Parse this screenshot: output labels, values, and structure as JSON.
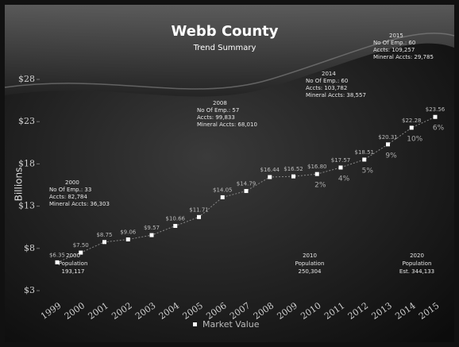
{
  "chart_data": {
    "type": "line",
    "title": "Webb County",
    "subtitle": "Trend Summary",
    "y_label": "Billions",
    "categories": [
      "1999",
      "2000",
      "2001",
      "2002",
      "2003",
      "2004",
      "2005",
      "2006",
      "2007",
      "2008",
      "2009",
      "2010",
      "2011",
      "2012",
      "2013",
      "2014",
      "2015"
    ],
    "series": [
      {
        "name": "Market Value",
        "color": "#ffffff",
        "values": [
          6.35,
          7.5,
          8.75,
          9.06,
          9.57,
          10.66,
          11.71,
          14.05,
          14.79,
          16.44,
          16.52,
          16.8,
          17.57,
          18.51,
          20.31,
          22.28,
          23.56
        ],
        "value_labels": [
          "$6.35",
          "$7.50",
          "$8.75",
          "$9.06",
          "$9.57",
          "$10.66",
          "$11.71",
          "$14.05",
          "$14.79",
          "$16.44",
          "$16.52",
          "$16.80",
          "$17.57",
          "$18.51",
          "$20.31",
          "$22.28",
          "$23.56"
        ]
      }
    ],
    "growth_labels": [
      null,
      null,
      null,
      null,
      null,
      null,
      null,
      null,
      null,
      null,
      null,
      "2%",
      "4%",
      "5%",
      "9%",
      "10%",
      "6%"
    ],
    "ylim": [
      3,
      28
    ],
    "yticks": [
      {
        "value": 3,
        "label": "$3"
      },
      {
        "value": 8,
        "label": "$8"
      },
      {
        "value": 13,
        "label": "$13"
      },
      {
        "value": 18,
        "label": "$18"
      },
      {
        "value": 23,
        "label": "$23"
      },
      {
        "value": 28,
        "label": "$28"
      }
    ],
    "annotations": [
      {
        "lines": [
          "2000",
          "No Of Emp.: 33",
          "Accts: 82,784",
          "Mineral Accts: 36,303"
        ]
      },
      {
        "lines": [
          "2008",
          "No Of Emp.: 57",
          "Accts: 99,833",
          "Mineral Accts: 68,010"
        ]
      },
      {
        "lines": [
          "2014",
          "No Of Emp.: 60",
          "Accts: 103,782",
          "Mineral Accts: 38,557"
        ]
      },
      {
        "lines": [
          "2015",
          "No Of Emp.: 60",
          "Accts: 109,257",
          "Mineral Accts: 29,785"
        ]
      }
    ],
    "population": [
      {
        "lines": [
          "2000",
          "Population",
          "193,117"
        ]
      },
      {
        "lines": [
          "2010",
          "Population",
          "250,304"
        ]
      },
      {
        "lines": [
          "2020",
          "Population",
          "Est. 344,133"
        ]
      }
    ]
  }
}
